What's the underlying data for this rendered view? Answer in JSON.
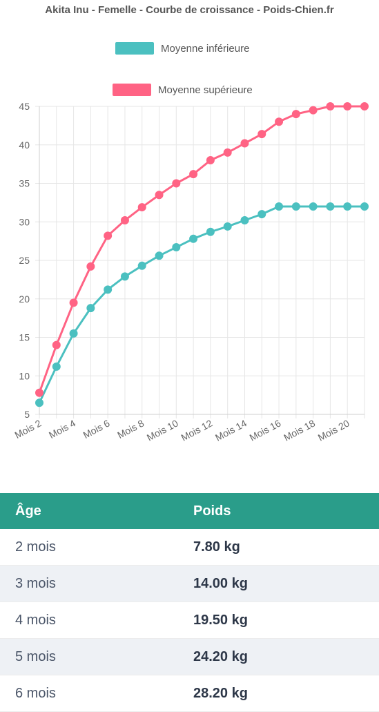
{
  "chart_data": {
    "type": "line",
    "title": "Akita Inu - Femelle - Courbe de croissance - Poids-Chien.fr",
    "xlabel": "",
    "ylabel": "",
    "ylim": [
      5,
      45
    ],
    "yticks": [
      5,
      10,
      15,
      20,
      25,
      30,
      35,
      40,
      45
    ],
    "x": [
      2,
      3,
      4,
      5,
      6,
      7,
      8,
      9,
      10,
      11,
      12,
      13,
      14,
      15,
      16,
      17,
      18,
      19,
      20,
      21
    ],
    "xtick_labels": [
      "Mois 2",
      "Mois 4",
      "Mois 6",
      "Mois 8",
      "Mois 10",
      "Mois 12",
      "Mois 14",
      "Mois 16",
      "Mois 18",
      "Mois 20"
    ],
    "xtick_values": [
      2,
      4,
      6,
      8,
      10,
      12,
      14,
      16,
      18,
      20
    ],
    "grid": true,
    "legend_position": "top",
    "series": [
      {
        "name": "Moyenne inférieure",
        "color": "#4bc0c0",
        "values": [
          6.5,
          11.2,
          15.5,
          18.8,
          21.2,
          22.9,
          24.3,
          25.6,
          26.7,
          27.8,
          28.7,
          29.4,
          30.2,
          31.0,
          32.0,
          32.0,
          32.0,
          32.0,
          32.0,
          32.0
        ]
      },
      {
        "name": "Moyenne supérieure",
        "color": "#ff6384",
        "values": [
          7.8,
          14.0,
          19.5,
          24.2,
          28.2,
          30.2,
          31.9,
          33.5,
          35.0,
          36.2,
          38.0,
          39.0,
          40.2,
          41.4,
          43.0,
          44.0,
          44.5,
          45.0,
          45.0,
          45.0
        ]
      }
    ]
  },
  "table": {
    "header_color": "#2a9d8a",
    "headers": {
      "age": "Âge",
      "weight": "Poids"
    },
    "rows": [
      {
        "age": "2 mois",
        "weight": "7.80 kg"
      },
      {
        "age": "3 mois",
        "weight": "14.00 kg"
      },
      {
        "age": "4 mois",
        "weight": "19.50 kg"
      },
      {
        "age": "5 mois",
        "weight": "24.20 kg"
      },
      {
        "age": "6 mois",
        "weight": "28.20 kg"
      }
    ]
  }
}
